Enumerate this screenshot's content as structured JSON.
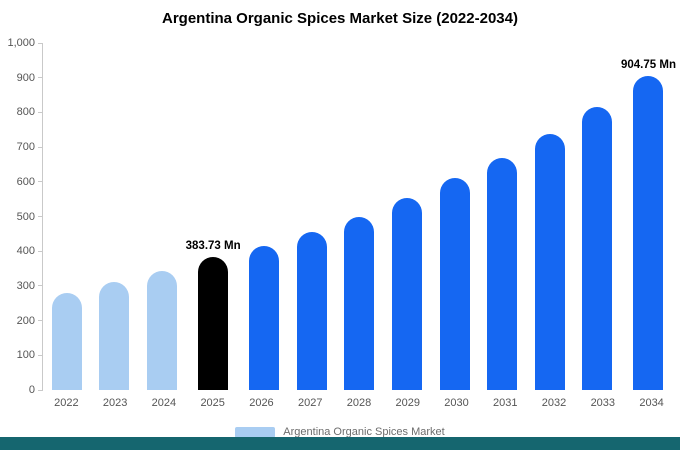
{
  "title": "Argentina Organic Spices Market Size (2022-2034)",
  "legend": {
    "label": "Argentina Organic Spices Market",
    "swatch_color": "#a9cdf2"
  },
  "colors": {
    "historic_bar": "#a9cdf2",
    "base_year_bar": "#000000",
    "forecast_bar": "#1567f2",
    "footer_strip": "#15666f",
    "axis_line": "#c9c9c9"
  },
  "y_axis": {
    "tick_labels": [
      "1,000",
      "900",
      "800",
      "700",
      "600",
      "500",
      "400",
      "300",
      "200",
      "100",
      "0"
    ]
  },
  "chart_data": {
    "type": "bar",
    "title": "Argentina Organic Spices Market Size (2022-2034)",
    "categories": [
      "2022",
      "2023",
      "2024",
      "2025",
      "2026",
      "2027",
      "2028",
      "2029",
      "2030",
      "2031",
      "2032",
      "2033",
      "2034"
    ],
    "values": [
      280,
      310,
      342,
      383.73,
      416,
      455,
      500,
      553,
      610,
      670,
      737,
      815,
      904.75
    ],
    "bar_colors": [
      "#a9cdf2",
      "#a9cdf2",
      "#a9cdf2",
      "#000000",
      "#1567f2",
      "#1567f2",
      "#1567f2",
      "#1567f2",
      "#1567f2",
      "#1567f2",
      "#1567f2",
      "#1567f2",
      "#1567f2"
    ],
    "bar_labels": [
      "",
      "",
      "",
      "383.73 Mn",
      "",
      "",
      "",
      "",
      "",
      "",
      "",
      "",
      "904.75 Mn"
    ],
    "xlabel": "",
    "ylabel": "",
    "ylim": [
      0,
      1000
    ],
    "grid": false,
    "legend_position": "bottom",
    "units": "Mn"
  }
}
